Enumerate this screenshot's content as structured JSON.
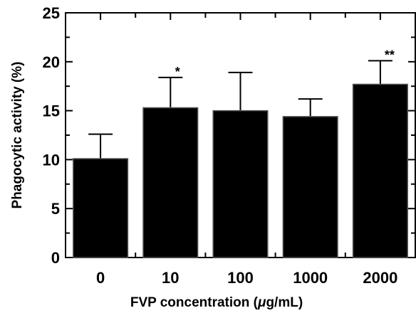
{
  "chart_data": {
    "type": "bar",
    "categories": [
      "0",
      "10",
      "100",
      "1000",
      "2000"
    ],
    "values": [
      10.1,
      15.3,
      15.0,
      14.4,
      17.7
    ],
    "errors": [
      2.5,
      3.1,
      3.9,
      1.8,
      2.4
    ],
    "annotations": [
      "",
      "*",
      "",
      "",
      "**"
    ],
    "title": "",
    "xlabel_prefix": "FVP concentration (",
    "xlabel_mu": "μ",
    "xlabel_suffix": "g/mL)",
    "ylabel": "Phagocytic activity (%)",
    "ylim": [
      0,
      25
    ],
    "yticks": [
      "0",
      "5",
      "10",
      "15",
      "20",
      "25"
    ],
    "ytick_values": [
      0,
      5,
      10,
      15,
      20,
      25
    ],
    "grid": false,
    "bar_color": "#000000"
  }
}
